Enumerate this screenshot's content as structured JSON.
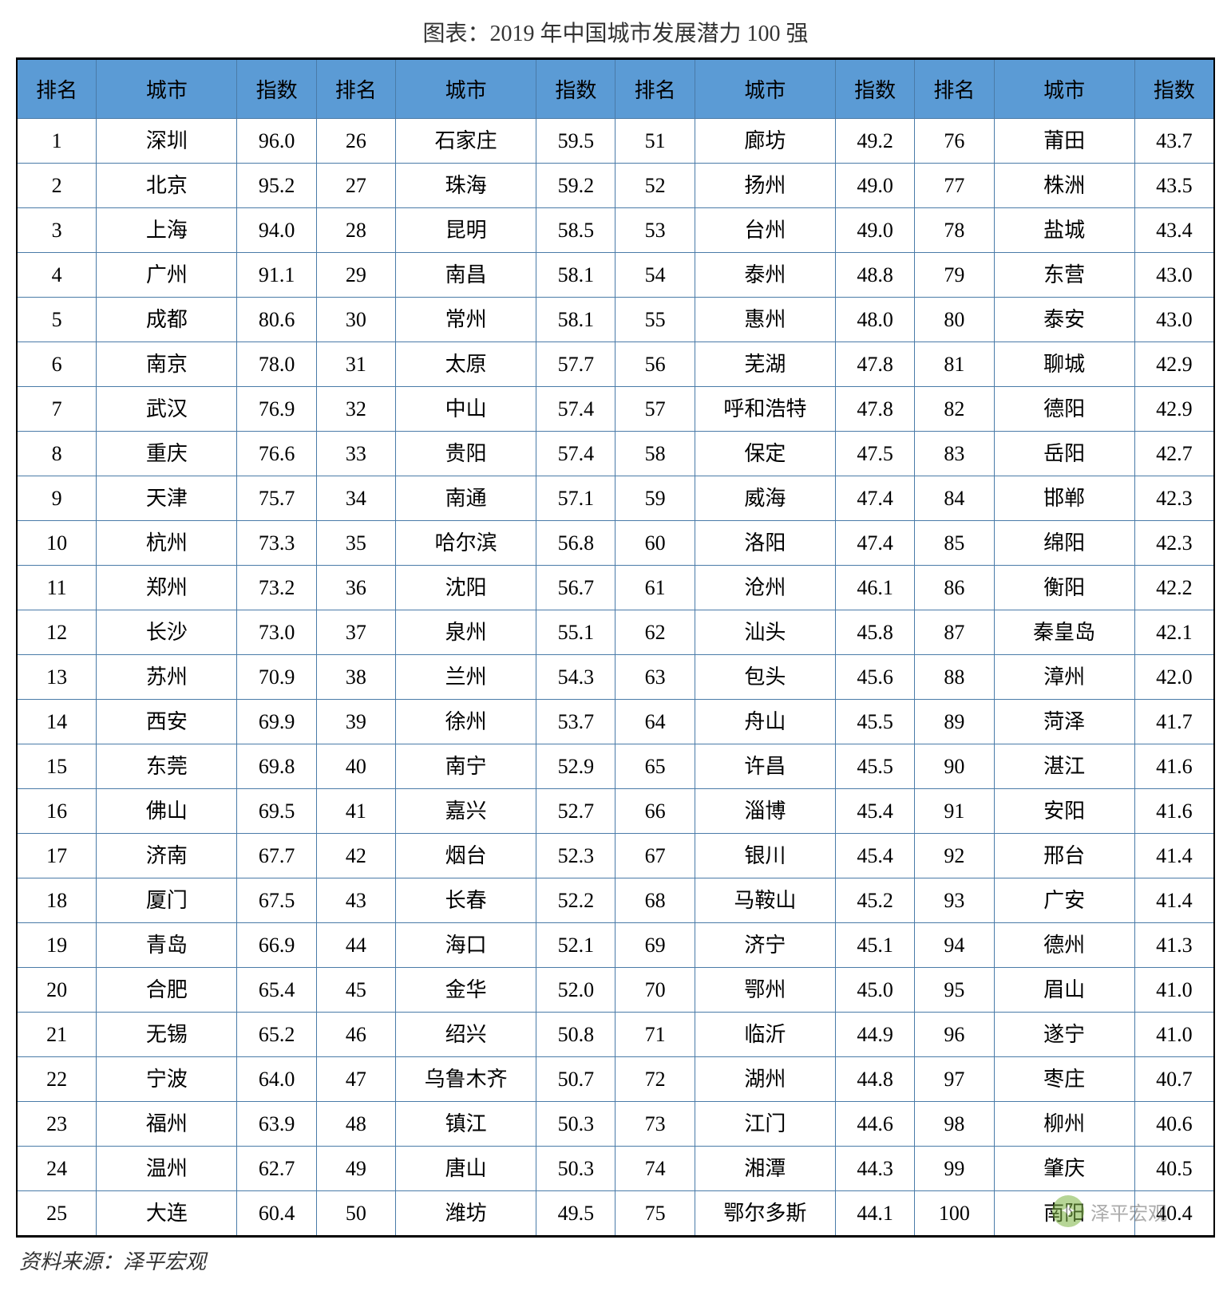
{
  "title": "图表：2019 年中国城市发展潜力 100 强",
  "source": "资料来源：泽平宏观",
  "watermark": "泽平宏观",
  "styling": {
    "header_bg": "#5b9bd5",
    "border_color": "#4a7ba8",
    "outer_border_color": "#000000",
    "text_color": "#000000",
    "background_color": "#ffffff",
    "title_fontsize": 28,
    "cell_fontsize": 26,
    "header_fontsize": 26,
    "font_family": "SimSun"
  },
  "table": {
    "type": "table",
    "column_groups": 4,
    "rows_per_group": 25,
    "headers": [
      "排名",
      "城市",
      "指数"
    ],
    "rows": [
      {
        "rank": 1,
        "city": "深圳",
        "index": "96.0"
      },
      {
        "rank": 2,
        "city": "北京",
        "index": "95.2"
      },
      {
        "rank": 3,
        "city": "上海",
        "index": "94.0"
      },
      {
        "rank": 4,
        "city": "广州",
        "index": "91.1"
      },
      {
        "rank": 5,
        "city": "成都",
        "index": "80.6"
      },
      {
        "rank": 6,
        "city": "南京",
        "index": "78.0"
      },
      {
        "rank": 7,
        "city": "武汉",
        "index": "76.9"
      },
      {
        "rank": 8,
        "city": "重庆",
        "index": "76.6"
      },
      {
        "rank": 9,
        "city": "天津",
        "index": "75.7"
      },
      {
        "rank": 10,
        "city": "杭州",
        "index": "73.3"
      },
      {
        "rank": 11,
        "city": "郑州",
        "index": "73.2"
      },
      {
        "rank": 12,
        "city": "长沙",
        "index": "73.0"
      },
      {
        "rank": 13,
        "city": "苏州",
        "index": "70.9"
      },
      {
        "rank": 14,
        "city": "西安",
        "index": "69.9"
      },
      {
        "rank": 15,
        "city": "东莞",
        "index": "69.8"
      },
      {
        "rank": 16,
        "city": "佛山",
        "index": "69.5"
      },
      {
        "rank": 17,
        "city": "济南",
        "index": "67.7"
      },
      {
        "rank": 18,
        "city": "厦门",
        "index": "67.5"
      },
      {
        "rank": 19,
        "city": "青岛",
        "index": "66.9"
      },
      {
        "rank": 20,
        "city": "合肥",
        "index": "65.4"
      },
      {
        "rank": 21,
        "city": "无锡",
        "index": "65.2"
      },
      {
        "rank": 22,
        "city": "宁波",
        "index": "64.0"
      },
      {
        "rank": 23,
        "city": "福州",
        "index": "63.9"
      },
      {
        "rank": 24,
        "city": "温州",
        "index": "62.7"
      },
      {
        "rank": 25,
        "city": "大连",
        "index": "60.4"
      },
      {
        "rank": 26,
        "city": "石家庄",
        "index": "59.5"
      },
      {
        "rank": 27,
        "city": "珠海",
        "index": "59.2"
      },
      {
        "rank": 28,
        "city": "昆明",
        "index": "58.5"
      },
      {
        "rank": 29,
        "city": "南昌",
        "index": "58.1"
      },
      {
        "rank": 30,
        "city": "常州",
        "index": "58.1"
      },
      {
        "rank": 31,
        "city": "太原",
        "index": "57.7"
      },
      {
        "rank": 32,
        "city": "中山",
        "index": "57.4"
      },
      {
        "rank": 33,
        "city": "贵阳",
        "index": "57.4"
      },
      {
        "rank": 34,
        "city": "南通",
        "index": "57.1"
      },
      {
        "rank": 35,
        "city": "哈尔滨",
        "index": "56.8"
      },
      {
        "rank": 36,
        "city": "沈阳",
        "index": "56.7"
      },
      {
        "rank": 37,
        "city": "泉州",
        "index": "55.1"
      },
      {
        "rank": 38,
        "city": "兰州",
        "index": "54.3"
      },
      {
        "rank": 39,
        "city": "徐州",
        "index": "53.7"
      },
      {
        "rank": 40,
        "city": "南宁",
        "index": "52.9"
      },
      {
        "rank": 41,
        "city": "嘉兴",
        "index": "52.7"
      },
      {
        "rank": 42,
        "city": "烟台",
        "index": "52.3"
      },
      {
        "rank": 43,
        "city": "长春",
        "index": "52.2"
      },
      {
        "rank": 44,
        "city": "海口",
        "index": "52.1"
      },
      {
        "rank": 45,
        "city": "金华",
        "index": "52.0"
      },
      {
        "rank": 46,
        "city": "绍兴",
        "index": "50.8"
      },
      {
        "rank": 47,
        "city": "乌鲁木齐",
        "index": "50.7"
      },
      {
        "rank": 48,
        "city": "镇江",
        "index": "50.3"
      },
      {
        "rank": 49,
        "city": "唐山",
        "index": "50.3"
      },
      {
        "rank": 50,
        "city": "潍坊",
        "index": "49.5"
      },
      {
        "rank": 51,
        "city": "廊坊",
        "index": "49.2"
      },
      {
        "rank": 52,
        "city": "扬州",
        "index": "49.0"
      },
      {
        "rank": 53,
        "city": "台州",
        "index": "49.0"
      },
      {
        "rank": 54,
        "city": "泰州",
        "index": "48.8"
      },
      {
        "rank": 55,
        "city": "惠州",
        "index": "48.0"
      },
      {
        "rank": 56,
        "city": "芜湖",
        "index": "47.8"
      },
      {
        "rank": 57,
        "city": "呼和浩特",
        "index": "47.8"
      },
      {
        "rank": 58,
        "city": "保定",
        "index": "47.5"
      },
      {
        "rank": 59,
        "city": "威海",
        "index": "47.4"
      },
      {
        "rank": 60,
        "city": "洛阳",
        "index": "47.4"
      },
      {
        "rank": 61,
        "city": "沧州",
        "index": "46.1"
      },
      {
        "rank": 62,
        "city": "汕头",
        "index": "45.8"
      },
      {
        "rank": 63,
        "city": "包头",
        "index": "45.6"
      },
      {
        "rank": 64,
        "city": "舟山",
        "index": "45.5"
      },
      {
        "rank": 65,
        "city": "许昌",
        "index": "45.5"
      },
      {
        "rank": 66,
        "city": "淄博",
        "index": "45.4"
      },
      {
        "rank": 67,
        "city": "银川",
        "index": "45.4"
      },
      {
        "rank": 68,
        "city": "马鞍山",
        "index": "45.2"
      },
      {
        "rank": 69,
        "city": "济宁",
        "index": "45.1"
      },
      {
        "rank": 70,
        "city": "鄂州",
        "index": "45.0"
      },
      {
        "rank": 71,
        "city": "临沂",
        "index": "44.9"
      },
      {
        "rank": 72,
        "city": "湖州",
        "index": "44.8"
      },
      {
        "rank": 73,
        "city": "江门",
        "index": "44.6"
      },
      {
        "rank": 74,
        "city": "湘潭",
        "index": "44.3"
      },
      {
        "rank": 75,
        "city": "鄂尔多斯",
        "index": "44.1"
      },
      {
        "rank": 76,
        "city": "莆田",
        "index": "43.7"
      },
      {
        "rank": 77,
        "city": "株洲",
        "index": "43.5"
      },
      {
        "rank": 78,
        "city": "盐城",
        "index": "43.4"
      },
      {
        "rank": 79,
        "city": "东营",
        "index": "43.0"
      },
      {
        "rank": 80,
        "city": "泰安",
        "index": "43.0"
      },
      {
        "rank": 81,
        "city": "聊城",
        "index": "42.9"
      },
      {
        "rank": 82,
        "city": "德阳",
        "index": "42.9"
      },
      {
        "rank": 83,
        "city": "岳阳",
        "index": "42.7"
      },
      {
        "rank": 84,
        "city": "邯郸",
        "index": "42.3"
      },
      {
        "rank": 85,
        "city": "绵阳",
        "index": "42.3"
      },
      {
        "rank": 86,
        "city": "衡阳",
        "index": "42.2"
      },
      {
        "rank": 87,
        "city": "秦皇岛",
        "index": "42.1"
      },
      {
        "rank": 88,
        "city": "漳州",
        "index": "42.0"
      },
      {
        "rank": 89,
        "city": "菏泽",
        "index": "41.7"
      },
      {
        "rank": 90,
        "city": "湛江",
        "index": "41.6"
      },
      {
        "rank": 91,
        "city": "安阳",
        "index": "41.6"
      },
      {
        "rank": 92,
        "city": "邢台",
        "index": "41.4"
      },
      {
        "rank": 93,
        "city": "广安",
        "index": "41.4"
      },
      {
        "rank": 94,
        "city": "德州",
        "index": "41.3"
      },
      {
        "rank": 95,
        "city": "眉山",
        "index": "41.0"
      },
      {
        "rank": 96,
        "city": "遂宁",
        "index": "41.0"
      },
      {
        "rank": 97,
        "city": "枣庄",
        "index": "40.7"
      },
      {
        "rank": 98,
        "city": "柳州",
        "index": "40.6"
      },
      {
        "rank": 99,
        "city": "肇庆",
        "index": "40.5"
      },
      {
        "rank": 100,
        "city": "南阳",
        "index": "40.4"
      }
    ]
  }
}
